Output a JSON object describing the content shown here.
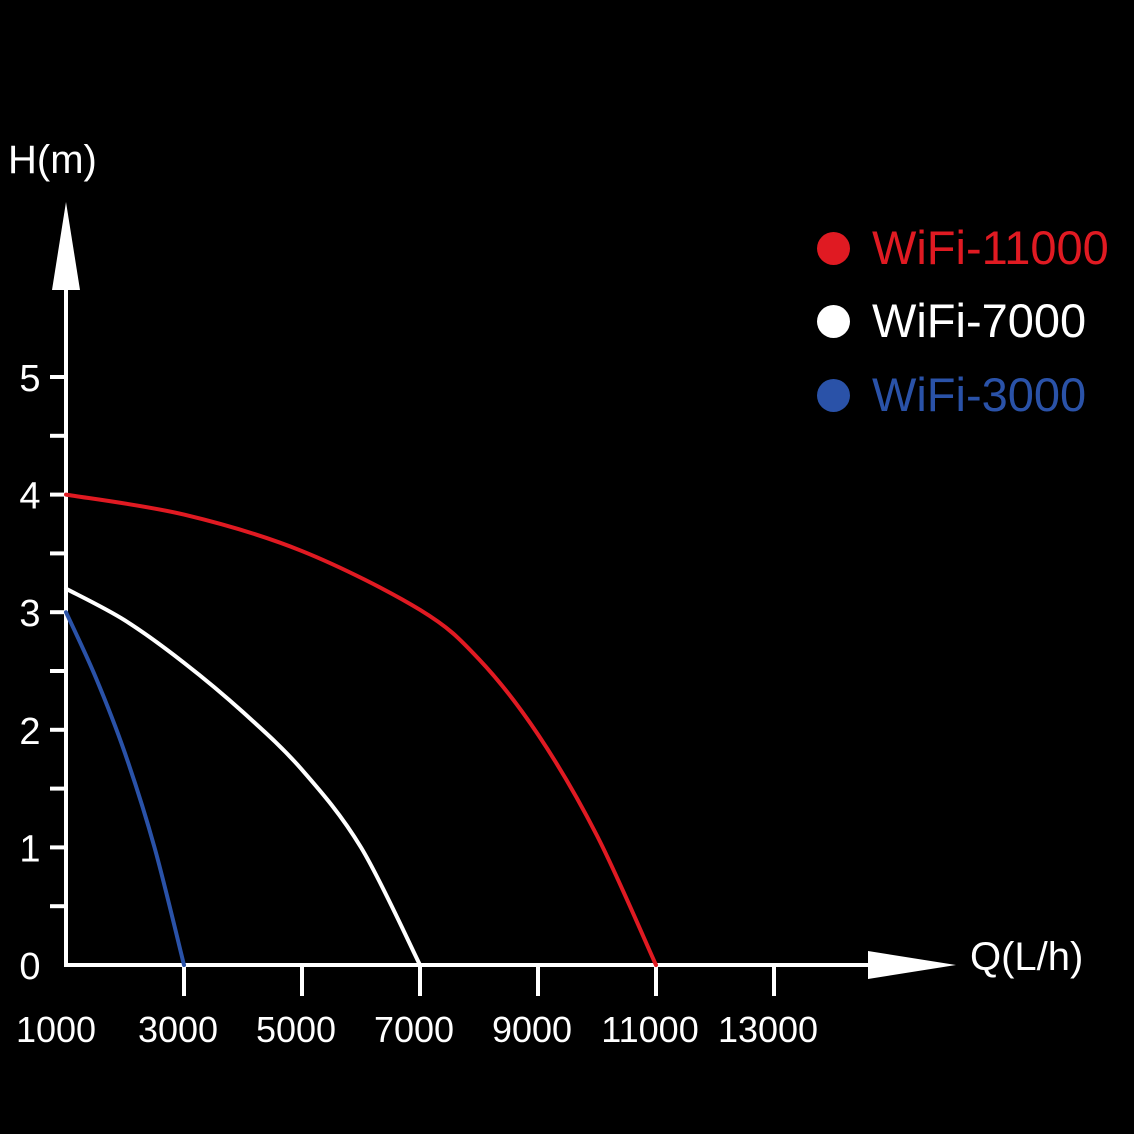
{
  "chart_data": {
    "type": "line",
    "title": "",
    "xlabel": "Q(L/h)",
    "ylabel": "H(m)",
    "xlim": [
      1000,
      14000
    ],
    "ylim": [
      0,
      6
    ],
    "x_ticks": [
      1000,
      3000,
      5000,
      7000,
      9000,
      11000,
      13000
    ],
    "x_tick_labels": [
      "1000",
      "3000",
      "5000",
      "7000",
      "9000",
      "11000",
      "13000"
    ],
    "y_ticks": [
      0,
      1,
      2,
      3,
      4,
      5
    ],
    "y_tick_labels": [
      "0",
      "1",
      "2",
      "3",
      "4",
      "5"
    ],
    "y_minor_ticks": [
      0.5,
      1.5,
      2.5,
      3.5,
      4.5
    ],
    "grid": false,
    "legend_position": "top-right",
    "series": [
      {
        "name": "WiFi-11000",
        "color": "#e01a22",
        "x": [
          1000,
          3000,
          5000,
          7000,
          8000,
          9000,
          10000,
          11000
        ],
        "y": [
          4.0,
          3.83,
          3.52,
          3.02,
          2.6,
          1.96,
          1.1,
          0
        ]
      },
      {
        "name": "WiFi-7000",
        "color": "#ffffff",
        "x": [
          1000,
          2000,
          3000,
          4000,
          5000,
          6000,
          7000
        ],
        "y": [
          3.2,
          2.93,
          2.57,
          2.15,
          1.66,
          1.0,
          0
        ]
      },
      {
        "name": "WiFi-3000",
        "color": "#2a52a8",
        "x": [
          1000,
          1500,
          2000,
          2500,
          3000
        ],
        "y": [
          3.0,
          2.45,
          1.8,
          1.0,
          0
        ]
      }
    ]
  },
  "legend": {
    "items": [
      {
        "label": "WiFi-11000",
        "color": "#e01a22"
      },
      {
        "label": "WiFi-7000",
        "color": "#ffffff"
      },
      {
        "label": "WiFi-3000",
        "color": "#2a52a8"
      }
    ]
  },
  "axes": {
    "y_label": "H(m)",
    "x_label": "Q(L/h)",
    "axis_color": "#ffffff",
    "background": "#000000"
  }
}
